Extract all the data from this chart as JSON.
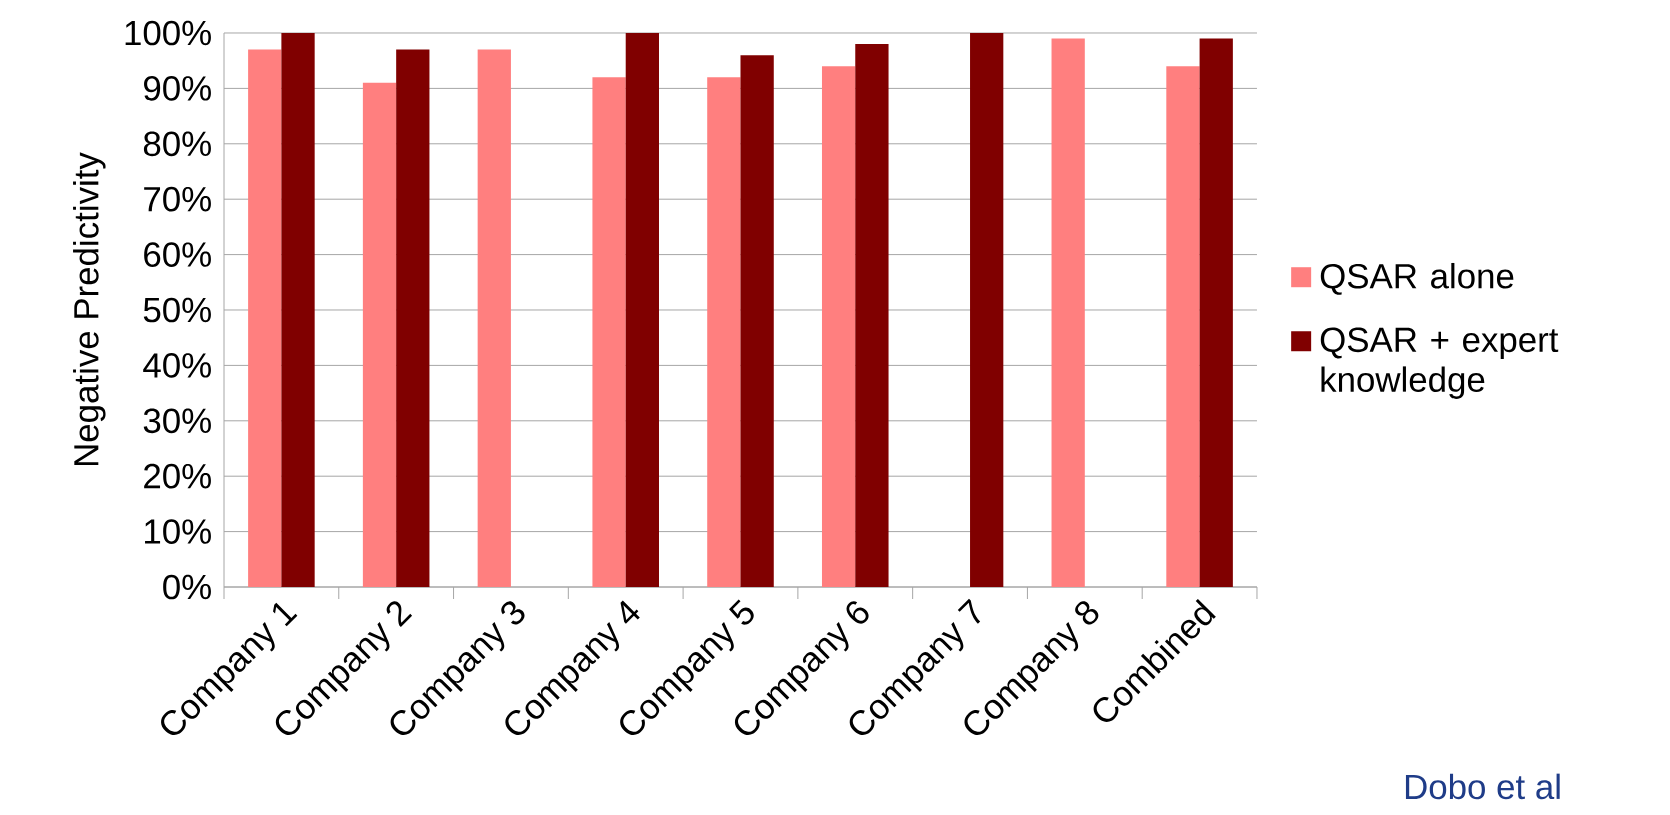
{
  "chart_data": {
    "type": "bar",
    "ylabel": "Negative Predictivity",
    "categories": [
      "Company 1",
      "Company 2",
      "Company 3",
      "Company 4",
      "Company 5",
      "Company 6",
      "Company 7",
      "Company 8",
      "Combined"
    ],
    "series": [
      {
        "name": "QSAR alone",
        "color": "#ff7f7f",
        "values": [
          97,
          91,
          97,
          92,
          92,
          94,
          null,
          99,
          94
        ]
      },
      {
        "name": "QSAR + expert knowledge",
        "color": "#800000",
        "values": [
          100,
          97,
          null,
          100,
          96,
          98,
          100,
          null,
          99
        ]
      }
    ],
    "ylim": [
      0,
      100
    ],
    "yticks": [
      {
        "value": 0,
        "label": "0%"
      },
      {
        "value": 10,
        "label": "10%"
      },
      {
        "value": 20,
        "label": "20%"
      },
      {
        "value": 30,
        "label": "30%"
      },
      {
        "value": 40,
        "label": "40%"
      },
      {
        "value": 50,
        "label": "50%"
      },
      {
        "value": 60,
        "label": "60%"
      },
      {
        "value": 70,
        "label": "70%"
      },
      {
        "value": 80,
        "label": "80%"
      },
      {
        "value": 90,
        "label": "90%"
      },
      {
        "value": 100,
        "label": "100%"
      }
    ],
    "grid": "y",
    "legend": "right",
    "annotations": [
      "Dobo et al"
    ]
  }
}
